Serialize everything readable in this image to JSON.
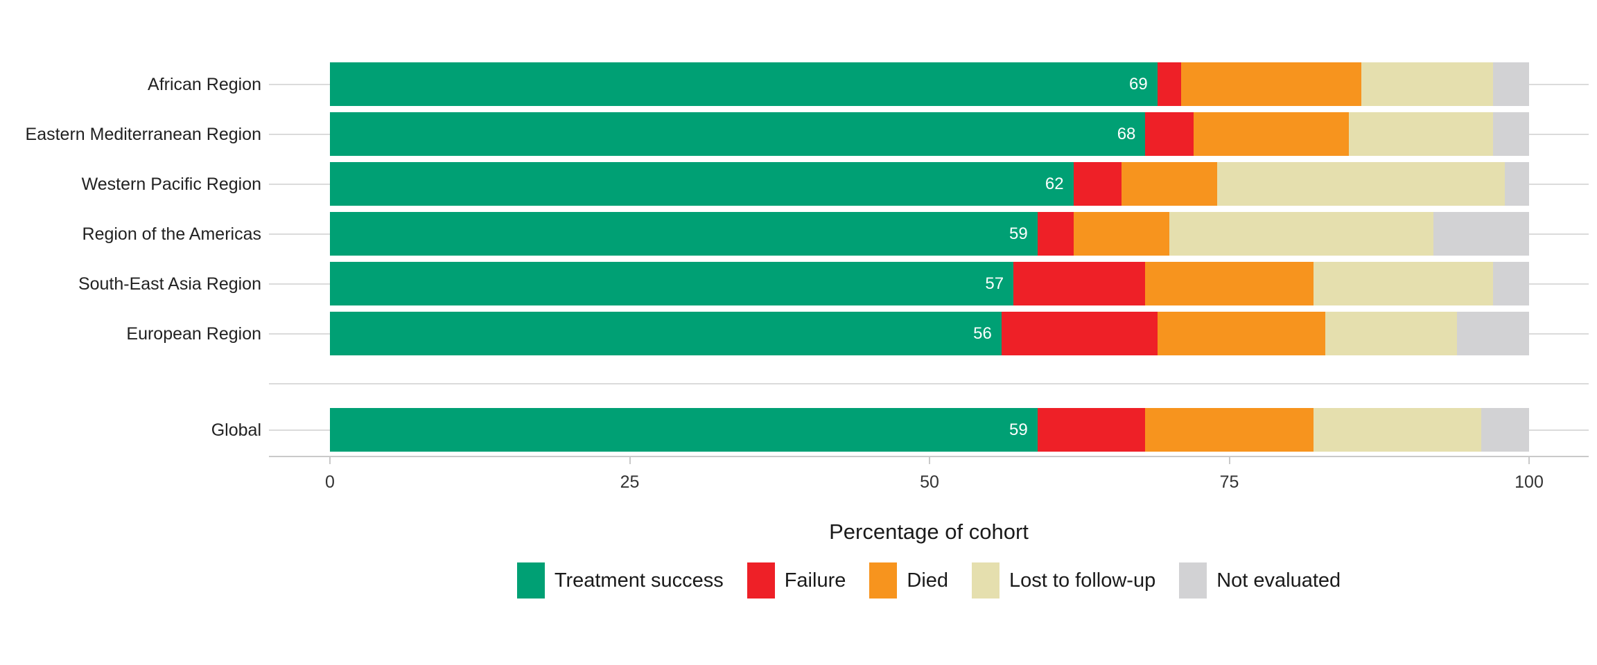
{
  "chart_data": {
    "type": "bar",
    "variant": "stacked-horizontal",
    "title": "",
    "xlabel": "Percentage of cohort",
    "xlim": [
      0,
      100
    ],
    "x_ticks": [
      "0",
      "25",
      "50",
      "75",
      "100"
    ],
    "grid": "horizontal category gridlines",
    "legend_position": "bottom",
    "series": [
      {
        "name": "Treatment success",
        "color": "#00A074"
      },
      {
        "name": "Failure",
        "color": "#EE2027"
      },
      {
        "name": "Died",
        "color": "#F7941E"
      },
      {
        "name": "Lost to follow-up",
        "color": "#E5DFAE"
      },
      {
        "name": "Not evaluated",
        "color": "#D2D2D4"
      }
    ],
    "rows": [
      {
        "label": "African Region",
        "values": [
          69,
          2,
          15,
          11,
          3
        ],
        "value_label": "69",
        "group": "regions"
      },
      {
        "label": "Eastern Mediterranean Region",
        "values": [
          68,
          4,
          13,
          12,
          3
        ],
        "value_label": "68",
        "group": "regions"
      },
      {
        "label": "Western Pacific Region",
        "values": [
          62,
          4,
          8,
          24,
          2
        ],
        "value_label": "62",
        "group": "regions"
      },
      {
        "label": "Region of the Americas",
        "values": [
          59,
          3,
          8,
          22,
          8
        ],
        "value_label": "59",
        "group": "regions"
      },
      {
        "label": "South-East Asia Region",
        "values": [
          57,
          11,
          14,
          15,
          3
        ],
        "value_label": "57",
        "group": "regions"
      },
      {
        "label": "European Region",
        "values": [
          56,
          13,
          14,
          11,
          6
        ],
        "value_label": "56",
        "group": "regions"
      },
      {
        "label": "Global",
        "values": [
          59,
          9,
          14,
          14,
          4
        ],
        "value_label": "59",
        "group": "global"
      }
    ]
  },
  "colors": {
    "background": "#FFFFFF",
    "label_text": "#222222",
    "tick_text": "#333333",
    "bar_value_text": "#FFFFFF",
    "gridline": "#DBDBDB",
    "axis_line": "#C9C9C9"
  }
}
